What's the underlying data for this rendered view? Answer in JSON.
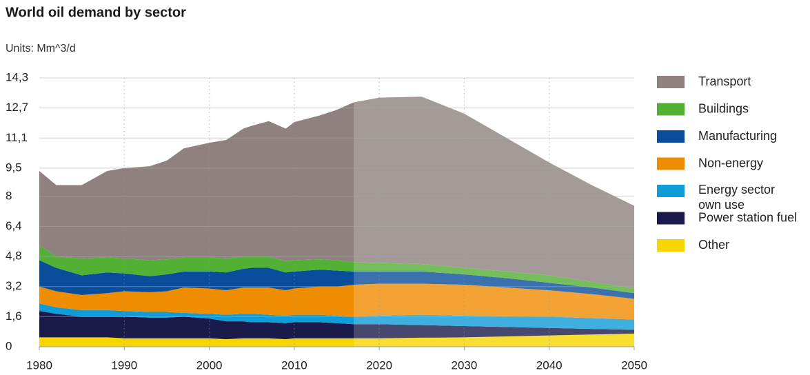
{
  "chart_data": {
    "type": "stacked_area",
    "title": "World oil demand by sector",
    "units": "Units: Mm^3/d",
    "x": [
      1980,
      1982,
      1985,
      1988,
      1990,
      1993,
      1995,
      1997,
      2000,
      2002,
      2004,
      2005,
      2007,
      2009,
      2010,
      2013,
      2015,
      2017,
      2020,
      2025,
      2030,
      2035,
      2040,
      2045,
      2050
    ],
    "xlim": [
      1980,
      2050
    ],
    "xticks": [
      1980,
      1990,
      2000,
      2010,
      2020,
      2030,
      2040,
      2050
    ],
    "ylim": [
      0,
      14.3
    ],
    "yticks": [
      0,
      {
        "value": 1.6,
        "label": "1,6"
      },
      {
        "value": 3.2,
        "label": "3,2"
      },
      {
        "value": 4.8,
        "label": "4,8"
      },
      {
        "value": 6.4,
        "label": "6,4"
      },
      8,
      {
        "value": 9.5,
        "label": "9,5"
      },
      {
        "value": 11.1,
        "label": "11,1"
      },
      {
        "value": 12.7,
        "label": "12,7"
      },
      {
        "value": 14.3,
        "label": "14,3"
      }
    ],
    "grid": true,
    "forecast_start": 2017,
    "legend": "right",
    "series": [
      {
        "name": "Transport",
        "color": "#8e817f",
        "values": [
          3.95,
          3.8,
          3.9,
          4.6,
          4.8,
          5.0,
          5.25,
          5.8,
          6.1,
          6.3,
          6.8,
          6.95,
          7.2,
          7.05,
          7.35,
          7.65,
          8.0,
          8.5,
          8.8,
          8.9,
          8.2,
          7.1,
          6.0,
          5.15,
          4.4
        ]
      },
      {
        "name": "Buildings",
        "color": "#52b034",
        "values": [
          0.8,
          0.6,
          0.9,
          0.8,
          0.8,
          0.85,
          0.8,
          0.75,
          0.75,
          0.75,
          0.65,
          0.6,
          0.6,
          0.6,
          0.6,
          0.55,
          0.55,
          0.5,
          0.45,
          0.4,
          0.35,
          0.35,
          0.4,
          0.3,
          0.25
        ]
      },
      {
        "name": "Manufacturing",
        "color": "#0a4e9b",
        "values": [
          1.4,
          1.25,
          1.05,
          1.1,
          0.95,
          0.85,
          0.9,
          0.85,
          0.9,
          0.95,
          1.0,
          1.05,
          1.05,
          0.95,
          0.9,
          0.9,
          0.85,
          0.7,
          0.65,
          0.65,
          0.55,
          0.5,
          0.4,
          0.35,
          0.3
        ]
      },
      {
        "name": "Non-energy",
        "color": "#ef8d00",
        "values": [
          0.9,
          0.85,
          0.8,
          0.9,
          1.05,
          1.05,
          1.1,
          1.35,
          1.35,
          1.3,
          1.4,
          1.4,
          1.45,
          1.35,
          1.4,
          1.5,
          1.55,
          1.7,
          1.7,
          1.65,
          1.65,
          1.53,
          1.4,
          1.28,
          1.1
        ]
      },
      {
        "name": "Energy sector own use",
        "color": "#109cd8",
        "values": [
          0.4,
          0.35,
          0.35,
          0.35,
          0.3,
          0.3,
          0.3,
          0.2,
          0.25,
          0.35,
          0.4,
          0.45,
          0.4,
          0.4,
          0.4,
          0.4,
          0.4,
          0.4,
          0.45,
          0.55,
          0.55,
          0.57,
          0.6,
          0.57,
          0.55
        ]
      },
      {
        "name": "Power station fuel",
        "color": "#1b1b4b",
        "values": [
          1.4,
          1.25,
          1.1,
          1.1,
          1.15,
          1.1,
          1.1,
          1.15,
          1.05,
          0.95,
          0.9,
          0.85,
          0.85,
          0.85,
          0.85,
          0.85,
          0.8,
          0.75,
          0.75,
          0.67,
          0.6,
          0.5,
          0.4,
          0.3,
          0.2
        ]
      },
      {
        "name": "Other",
        "color": "#f7d500",
        "values": [
          0.5,
          0.5,
          0.5,
          0.5,
          0.45,
          0.45,
          0.45,
          0.45,
          0.45,
          0.4,
          0.45,
          0.45,
          0.45,
          0.4,
          0.45,
          0.45,
          0.45,
          0.45,
          0.45,
          0.48,
          0.5,
          0.55,
          0.6,
          0.65,
          0.7
        ]
      }
    ]
  }
}
